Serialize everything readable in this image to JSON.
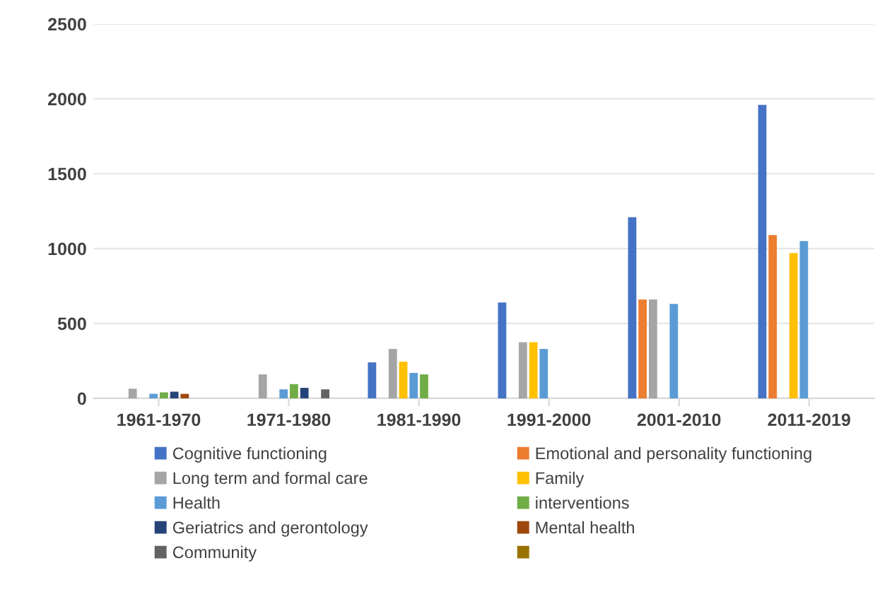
{
  "chart_data": {
    "type": "bar",
    "categories": [
      "1961-1970",
      "1971-1980",
      "1981-1990",
      "1991-2000",
      "2001-2010",
      "2011-2019"
    ],
    "series": [
      {
        "name": "Cognitive functioning",
        "color": "#4472c4",
        "values": [
          null,
          null,
          240,
          640,
          1210,
          1960
        ]
      },
      {
        "name": "Emotional and personality functioning",
        "color": "#ed7d31",
        "values": [
          null,
          null,
          null,
          null,
          660,
          1090
        ]
      },
      {
        "name": "Long term and formal care",
        "color": "#a5a5a5",
        "values": [
          65,
          160,
          330,
          375,
          660,
          null
        ]
      },
      {
        "name": "Family",
        "color": "#ffc000",
        "values": [
          null,
          null,
          245,
          375,
          null,
          970
        ]
      },
      {
        "name": "Health",
        "color": "#5b9bd5",
        "values": [
          30,
          60,
          170,
          330,
          630,
          1050
        ]
      },
      {
        "name": "interventions",
        "color": "#70ad47",
        "values": [
          40,
          95,
          160,
          null,
          null,
          null
        ]
      },
      {
        "name": "Geriatrics and gerontology",
        "color": "#264478",
        "values": [
          45,
          70,
          null,
          null,
          null,
          null
        ]
      },
      {
        "name": "Mental health",
        "color": "#9e480e",
        "values": [
          30,
          null,
          null,
          null,
          null,
          null
        ]
      },
      {
        "name": "Community",
        "color": "#636363",
        "values": [
          null,
          60,
          null,
          null,
          null,
          null
        ]
      },
      {
        "color": "#997300",
        "values": [
          null,
          null,
          null,
          null,
          null,
          null
        ]
      }
    ],
    "ylim": [
      0,
      2500
    ],
    "yticks": [
      0,
      500,
      1000,
      1500,
      2000,
      2500
    ],
    "grid": "y",
    "legend": "bottom"
  }
}
